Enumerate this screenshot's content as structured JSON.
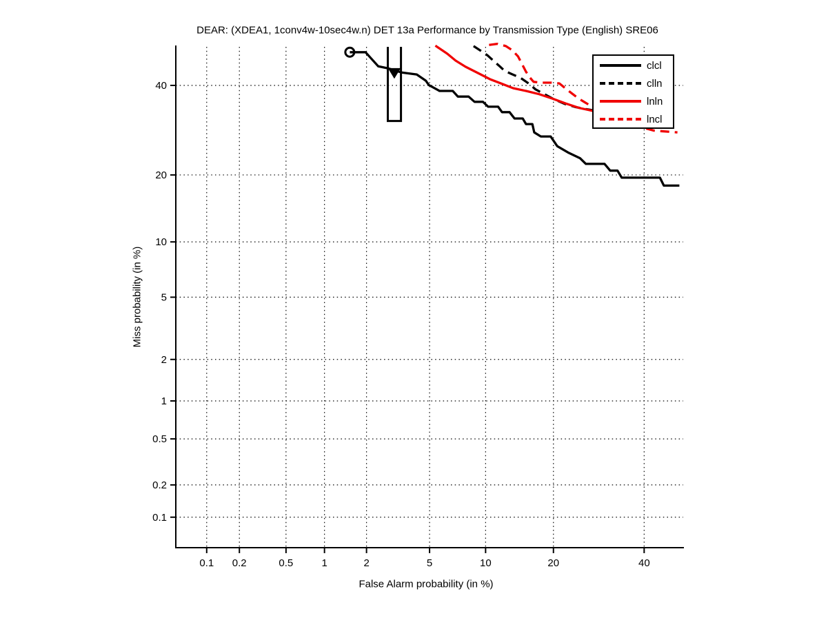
{
  "chart_data": {
    "type": "line",
    "variant": "DET-curve-probit-scale",
    "title": "DEAR: (XDEA1, 1conv4w-10sec4w.n) DET 13a Performance by Transmission Type (English) SRE06",
    "xlabel": "False Alarm probability (in %)",
    "ylabel": "Miss probability (in %)",
    "x_ticks": [
      0.1,
      0.2,
      0.5,
      1,
      2,
      5,
      10,
      20,
      40
    ],
    "y_ticks": [
      0.1,
      0.2,
      0.5,
      1,
      2,
      5,
      10,
      20,
      40
    ],
    "axis_range_percent": {
      "x": [
        0.05,
        50
      ],
      "y": [
        0.05,
        50
      ]
    },
    "grid": true,
    "grid_style": "dotted",
    "legend": {
      "position": "upper-right"
    },
    "series": [
      {
        "name": "clcl",
        "color": "#000000",
        "dash": "solid",
        "points": [
          [
            1.53,
            48.6
          ],
          [
            1.97,
            48.6
          ],
          [
            2.4,
            44.9
          ],
          [
            2.77,
            44.4
          ],
          [
            3.4,
            43.3
          ],
          [
            4.2,
            42.8
          ],
          [
            4.75,
            41.2
          ],
          [
            4.95,
            40.1
          ],
          [
            5.7,
            38.6
          ],
          [
            6.75,
            38.6
          ],
          [
            7.2,
            37.2
          ],
          [
            8.2,
            37.2
          ],
          [
            8.8,
            35.9
          ],
          [
            9.7,
            35.9
          ],
          [
            10.3,
            34.7
          ],
          [
            11.5,
            34.7
          ],
          [
            12.0,
            33.4
          ],
          [
            13.0,
            33.4
          ],
          [
            13.7,
            31.9
          ],
          [
            14.9,
            31.9
          ],
          [
            15.4,
            30.6
          ],
          [
            16.4,
            30.6
          ],
          [
            16.7,
            28.7
          ],
          [
            17.8,
            27.8
          ],
          [
            19.5,
            27.8
          ],
          [
            20.7,
            25.7
          ],
          [
            22.9,
            24.3
          ],
          [
            25.2,
            23.2
          ],
          [
            26.4,
            22.1
          ],
          [
            30.5,
            22.1
          ],
          [
            31.8,
            20.8
          ],
          [
            33.5,
            20.8
          ],
          [
            34.5,
            19.5
          ],
          [
            44.0,
            19.5
          ],
          [
            45.0,
            18.1
          ],
          [
            49.0,
            18.1
          ]
        ]
      },
      {
        "name": "clln",
        "color": "#000000",
        "dash": "dashed",
        "points": [
          [
            8.7,
            50.2
          ],
          [
            9.5,
            48.9
          ],
          [
            10.2,
            47.8
          ],
          [
            10.9,
            46.4
          ],
          [
            11.6,
            45.1
          ],
          [
            12.3,
            43.8
          ],
          [
            13.3,
            42.9
          ],
          [
            14.6,
            41.9
          ],
          [
            15.9,
            40.4
          ],
          [
            16.9,
            39.0
          ],
          [
            18.4,
            37.8
          ],
          [
            20.0,
            36.6
          ],
          [
            22.1,
            35.4
          ],
          [
            24.3,
            34.6
          ],
          [
            26.5,
            34.1
          ],
          [
            30.0,
            33.5
          ]
        ]
      },
      {
        "name": "lnln",
        "color": "#f00000",
        "dash": "solid",
        "points": [
          [
            5.4,
            50.3
          ],
          [
            6.3,
            48.2
          ],
          [
            7.0,
            46.4
          ],
          [
            7.9,
            44.8
          ],
          [
            9.3,
            43.0
          ],
          [
            10.5,
            41.6
          ],
          [
            12.0,
            40.4
          ],
          [
            13.5,
            39.3
          ],
          [
            15.4,
            38.6
          ],
          [
            17.5,
            37.8
          ],
          [
            19.8,
            36.7
          ],
          [
            22.3,
            35.5
          ],
          [
            25.0,
            34.4
          ],
          [
            27.0,
            33.9
          ],
          [
            30.0,
            33.2
          ]
        ]
      },
      {
        "name": "lncl",
        "color": "#f00000",
        "dash": "dashed",
        "points": [
          [
            10.4,
            50.5
          ],
          [
            11.4,
            50.8
          ],
          [
            12.5,
            50.2
          ],
          [
            13.4,
            49.1
          ],
          [
            14.2,
            47.5
          ],
          [
            14.8,
            45.5
          ],
          [
            15.4,
            43.5
          ],
          [
            16.0,
            42.0
          ],
          [
            16.6,
            40.9
          ],
          [
            17.9,
            40.7
          ],
          [
            19.6,
            40.7
          ],
          [
            21.1,
            40.5
          ],
          [
            22.2,
            39.3
          ],
          [
            23.6,
            37.9
          ],
          [
            24.9,
            36.7
          ],
          [
            26.0,
            35.9
          ],
          [
            28.5,
            34.2
          ],
          [
            32.0,
            31.9
          ],
          [
            36.0,
            30.4
          ],
          [
            40.0,
            29.7
          ],
          [
            42.5,
            29.1
          ],
          [
            48.5,
            28.7
          ]
        ]
      }
    ],
    "markers": [
      {
        "shape": "circle",
        "fa": 1.53,
        "miss": 48.6,
        "fill": "none",
        "color": "#000000",
        "size": 13
      },
      {
        "shape": "triangle-down",
        "fa": 3.05,
        "miss": 43.2,
        "fill": "#000000",
        "color": "#000000",
        "size": 17
      }
    ],
    "box_annotation": {
      "fa_range": [
        2.77,
        3.36
      ],
      "miss_range": [
        31.3,
        50.0
      ],
      "open_top": true,
      "color": "#000000"
    }
  }
}
